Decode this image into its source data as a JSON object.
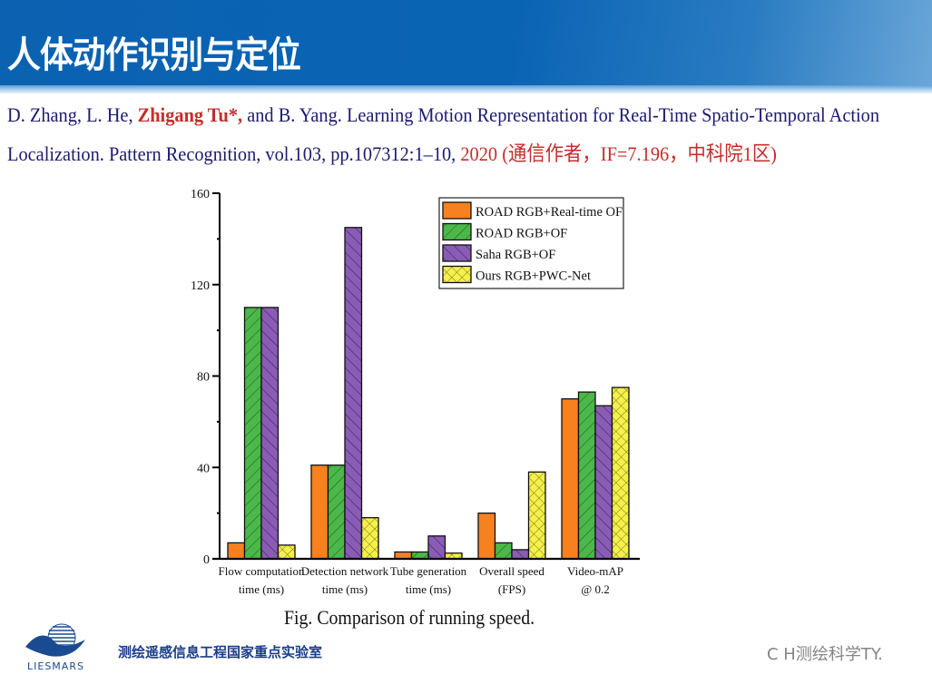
{
  "slide": {
    "title": "人体动作识别与定位",
    "citation": {
      "line1_pre": "D. Zhang, L. He, ",
      "line1_author": "Zhigang Tu*,",
      "line1_post": " and B. Yang. Learning Motion Representation for Real-Time Spatio-Temporal Action",
      "line2_pre": "Localization. Pattern Recognition, vol.103, pp.107312:1–10, ",
      "line2_red": "2020 (通信作者，IF=7.196，中科院1区)"
    },
    "caption": "Fig. Comparison of running speed.",
    "footer": {
      "logo_text": "LIESMARS",
      "lab_name": "测绘遥感信息工程国家重点实验室",
      "watermark": "C  H测绘科学TY."
    }
  },
  "colors": {
    "header_blue": "#0a64b4",
    "citation_blue": "#1c1a6e",
    "citation_red": "#c62c2c",
    "orange": "#f7811e",
    "green": "#4cb74a",
    "purple": "#8a5cb5",
    "yellow": "#f5f04a"
  },
  "chart_data": {
    "type": "bar",
    "title": "Fig. Comparison of running speed.",
    "xlabel": "",
    "ylabel": "",
    "ylim": [
      0,
      160
    ],
    "yticks": [
      0,
      40,
      80,
      120,
      160
    ],
    "categories": [
      "Flow computation time (ms)",
      "Detection network time (ms)",
      "Tube generation time (ms)",
      "Overall speed (FPS)",
      "Video-mAP @ 0.2"
    ],
    "category_lines": [
      [
        "Flow computation",
        "time (ms)"
      ],
      [
        "Detection network",
        "time (ms)"
      ],
      [
        "Tube generation",
        "time (ms)"
      ],
      [
        "Overall speed",
        "(FPS)"
      ],
      [
        "Video-mAP",
        "@ 0.2"
      ]
    ],
    "series": [
      {
        "name": "ROAD RGB+Real-time OF",
        "pattern": "solid",
        "values": [
          7,
          41,
          3,
          20,
          70
        ]
      },
      {
        "name": "ROAD RGB+OF",
        "pattern": "hatch-forward",
        "values": [
          110,
          41,
          3,
          7,
          73
        ]
      },
      {
        "name": "Saha RGB+OF",
        "pattern": "hatch-back",
        "values": [
          110,
          145,
          10,
          4,
          67
        ]
      },
      {
        "name": "Ours RGB+PWC-Net",
        "pattern": "crosshatch",
        "values": [
          6,
          18,
          2.5,
          38,
          75
        ]
      }
    ],
    "legend_position": "upper-right",
    "grid": false
  }
}
